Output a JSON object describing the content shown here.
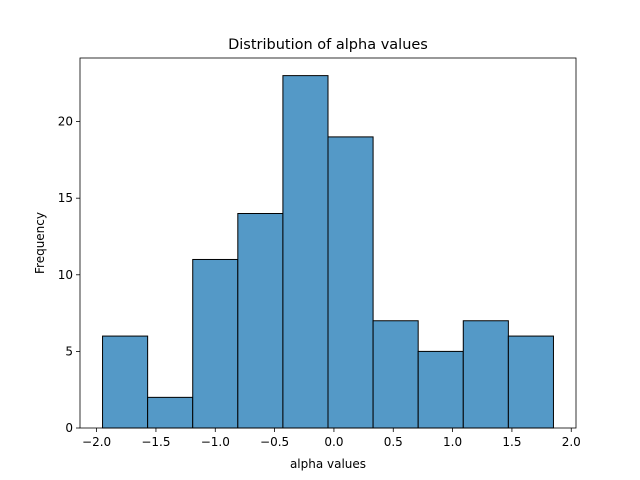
{
  "chart_data": {
    "type": "bar",
    "title": "Distribution of alpha values",
    "xlabel": "alpha values",
    "ylabel": "Frequency",
    "bin_edges": [
      -1.95,
      -1.57,
      -1.19,
      -0.81,
      -0.43,
      -0.05,
      0.33,
      0.71,
      1.09,
      1.47,
      1.85
    ],
    "values": [
      6,
      2,
      11,
      14,
      23,
      19,
      7,
      5,
      7,
      6
    ],
    "xlim": [
      -2.14,
      2.04
    ],
    "ylim": [
      0,
      24.15
    ],
    "xticks": [
      -2.0,
      -1.5,
      -1.0,
      -0.5,
      0.0,
      0.5,
      1.0,
      1.5,
      2.0
    ],
    "xtick_labels": [
      "−2.0",
      "−1.5",
      "−1.0",
      "−0.5",
      "0.0",
      "0.5",
      "1.0",
      "1.5",
      "2.0"
    ],
    "yticks": [
      0,
      5,
      10,
      15,
      20
    ],
    "ytick_labels": [
      "0",
      "5",
      "10",
      "15",
      "20"
    ],
    "bar_color": "#5499c7",
    "edge_color": "#000000",
    "grid": false,
    "legend": "none"
  }
}
